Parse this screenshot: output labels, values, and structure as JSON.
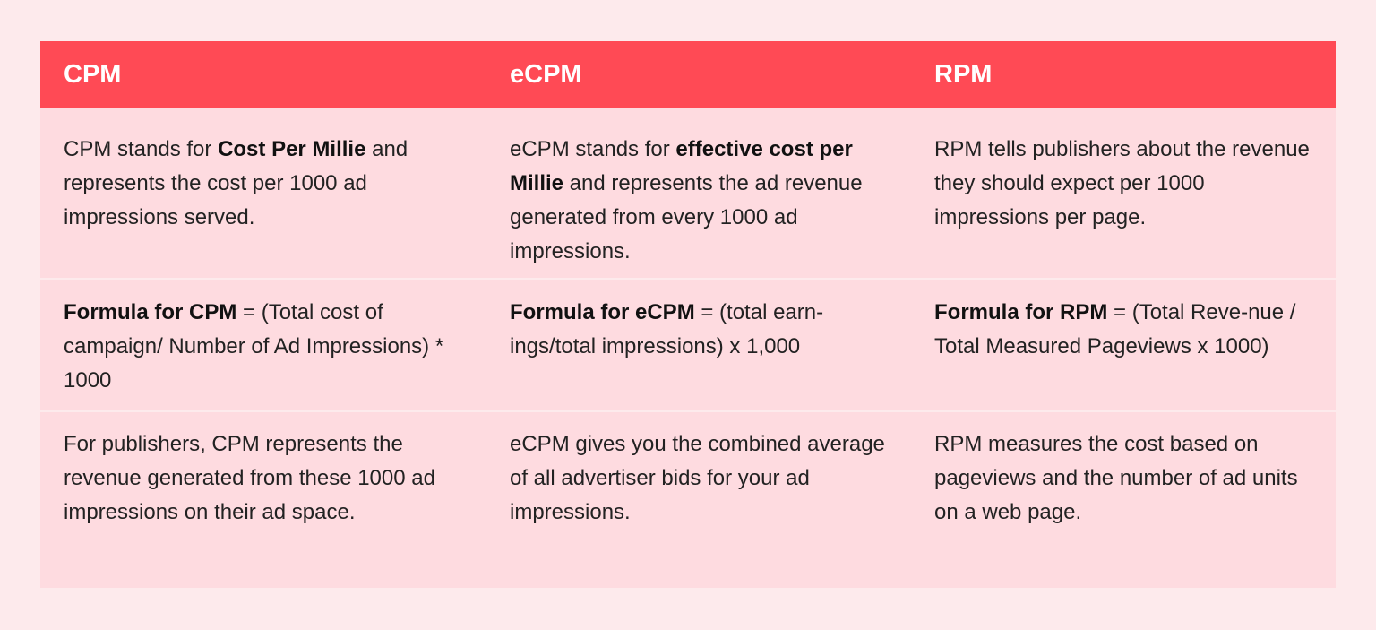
{
  "table": {
    "headers": [
      "CPM",
      "eCPM",
      "RPM"
    ],
    "colors": {
      "header_bg": "#ff4a55",
      "row_bg": "#fedbe0",
      "page_bg": "#fdeaec"
    },
    "rows": [
      {
        "cpm": {
          "pre": "CPM stands for ",
          "bold": "Cost Per Millie",
          "post": " and represents the cost per 1000 ad impressions served."
        },
        "ecpm": {
          "pre": "eCPM stands for ",
          "bold": "effective cost per Millie",
          "post": " and represents the ad revenue generated from every 1000 ad impressions."
        },
        "rpm": {
          "pre": "",
          "bold": "",
          "post": "RPM tells publishers about the revenue they should expect per 1000 impressions per page."
        }
      },
      {
        "cpm": {
          "pre": "",
          "bold": "Formula for CPM",
          "post": " = (Total cost of campaign/ Number of Ad Impressions) * 1000"
        },
        "ecpm": {
          "pre": "",
          "bold": "Formula for eCPM",
          "post": " = (total earn-ings/total impressions) x 1,000"
        },
        "rpm": {
          "pre": "",
          "bold": "Formula for RPM",
          "post": " = (Total Reve-nue / Total Measured Pageviews x 1000)"
        }
      },
      {
        "cpm": {
          "pre": "",
          "bold": "",
          "post": "For publishers, CPM represents the revenue generated from these 1000 ad impressions on their ad space."
        },
        "ecpm": {
          "pre": "",
          "bold": "",
          "post": "eCPM gives you the combined average of all advertiser bids for your ad impressions."
        },
        "rpm": {
          "pre": "",
          "bold": "",
          "post": "RPM measures the cost based on pageviews and the number of ad units on a web page."
        }
      }
    ]
  }
}
